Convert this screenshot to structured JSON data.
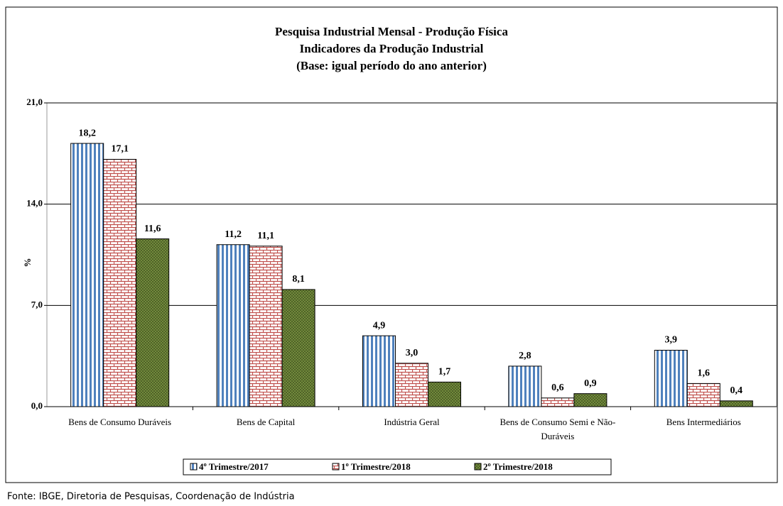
{
  "chart_data": {
    "type": "bar",
    "title": [
      "Pesquisa Industrial Mensal - Produção Física",
      "Indicadores da Produção Industrial",
      "(Base: igual período do ano anterior)"
    ],
    "y_label": "%",
    "source": "Fonte: IBGE, Diretoria de Pesquisas, Coordenação de Indústria",
    "categories": [
      "Bens de Consumo Duráveis",
      "Bens de Capital",
      "Indústria Geral",
      "Bens de Consumo Semi e Não-Duráveis",
      "Bens Intermediários"
    ],
    "series": [
      {
        "name": "4º Trimestre/2017",
        "color": "#4f81bd",
        "pattern": "vertical-stripes",
        "values": [
          18.2,
          11.2,
          4.9,
          2.8,
          3.9
        ],
        "value_labels": [
          "18,2",
          "11,2",
          "4,9",
          "2,8",
          "3,9"
        ]
      },
      {
        "name": "1º Trimestre/2018",
        "color": "#c0504d",
        "pattern": "bricks",
        "values": [
          17.1,
          11.1,
          3.0,
          0.6,
          1.6
        ],
        "value_labels": [
          "17,1",
          "11,1",
          "3,0",
          "0,6",
          "1,6"
        ]
      },
      {
        "name": "2º Trimestre/2018",
        "color": "#4f6228",
        "pattern": "dots",
        "values": [
          11.6,
          8.1,
          1.7,
          0.9,
          0.4
        ],
        "value_labels": [
          "11,6",
          "8,1",
          "1,7",
          "0,9",
          "0,4"
        ]
      }
    ],
    "ylim": [
      0,
      21
    ],
    "yticks": [
      {
        "value": 0,
        "label": "0,0"
      },
      {
        "value": 7,
        "label": "7,0"
      },
      {
        "value": 14,
        "label": "14,0"
      },
      {
        "value": 21,
        "label": "21,0"
      }
    ],
    "grid": true,
    "legend": "bottom"
  }
}
